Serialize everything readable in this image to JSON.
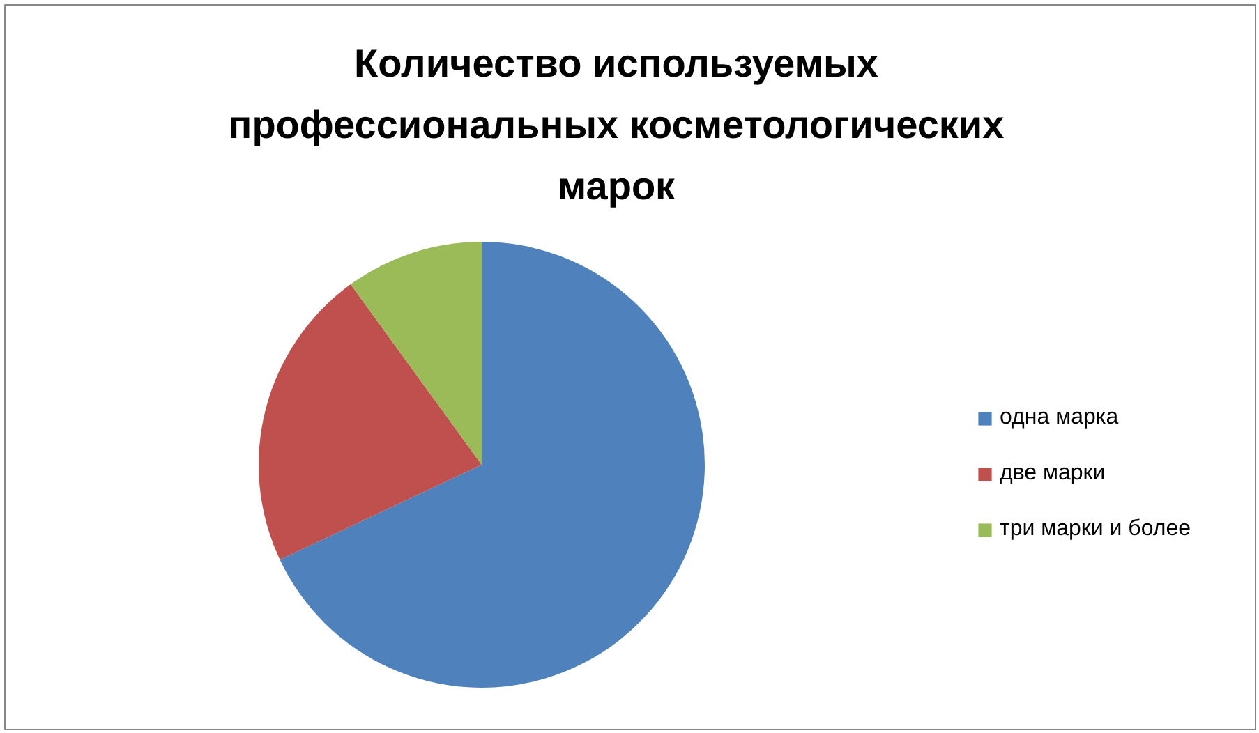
{
  "chart_data": {
    "type": "pie",
    "title": "Количество используемых профессиональных косметологических марок",
    "categories": [
      "одна марка",
      "две марки",
      "три марки и более"
    ],
    "values": [
      68,
      22,
      10
    ],
    "colors": [
      "#4f81bd",
      "#c0504d",
      "#9bbb59"
    ],
    "legend": "right"
  }
}
